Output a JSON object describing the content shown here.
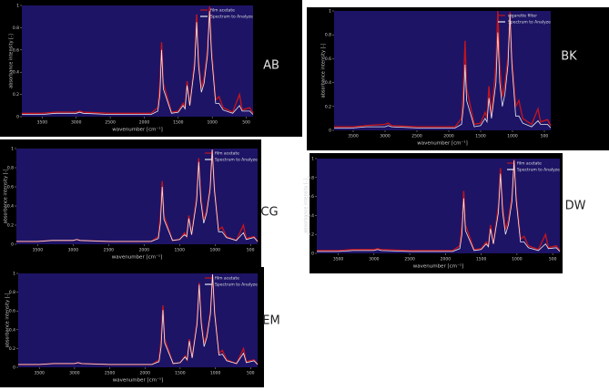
{
  "chart_data": [
    {
      "type": "line",
      "title": "AB",
      "x_label": "wavenumber [cm⁻¹]",
      "y_label": "absorbance intensity [-]",
      "x": [
        3800,
        3500,
        3300,
        3000,
        2950,
        2900,
        2500,
        2100,
        1900,
        1800,
        1770,
        1745,
        1720,
        1600,
        1500,
        1430,
        1400,
        1370,
        1330,
        1260,
        1230,
        1200,
        1160,
        1120,
        1070,
        1040,
        1010,
        950,
        900,
        840,
        700,
        600,
        560,
        450,
        400
      ],
      "series": [
        {
          "name": "film acetate",
          "color": "#c0141e",
          "values": [
            0.03,
            0.03,
            0.04,
            0.04,
            0.05,
            0.04,
            0.03,
            0.03,
            0.03,
            0.08,
            0.3,
            0.67,
            0.3,
            0.04,
            0.05,
            0.12,
            0.08,
            0.32,
            0.1,
            0.5,
            0.92,
            0.5,
            0.25,
            0.35,
            0.6,
            0.99,
            0.6,
            0.15,
            0.18,
            0.08,
            0.04,
            0.2,
            0.06,
            0.08,
            0.03
          ]
        },
        {
          "name": "Spectrum to Analyze",
          "color": "#e8e8f0",
          "values": [
            0.02,
            0.02,
            0.03,
            0.03,
            0.04,
            0.03,
            0.02,
            0.02,
            0.02,
            0.05,
            0.2,
            0.6,
            0.25,
            0.03,
            0.04,
            0.1,
            0.07,
            0.28,
            0.1,
            0.45,
            0.85,
            0.45,
            0.22,
            0.3,
            0.55,
            0.95,
            0.55,
            0.12,
            0.12,
            0.06,
            0.03,
            0.1,
            0.05,
            0.05,
            0.02
          ]
        }
      ],
      "xlim": [
        3800,
        400
      ],
      "ylim": [
        0,
        1
      ],
      "xticks": [
        3500,
        3000,
        2500,
        2000,
        1500,
        1000,
        500
      ],
      "yticks": [
        0,
        0.2,
        0.4,
        0.6,
        0.8,
        1
      ]
    },
    {
      "type": "line",
      "title": "BK",
      "x_label": "wavenumber [cm⁻¹]",
      "y_label": "absorbance intensity [-]",
      "x": [
        3800,
        3500,
        3300,
        3000,
        2950,
        2900,
        2500,
        2100,
        1900,
        1800,
        1770,
        1745,
        1720,
        1600,
        1500,
        1430,
        1400,
        1370,
        1330,
        1260,
        1230,
        1200,
        1160,
        1120,
        1070,
        1040,
        1010,
        950,
        900,
        840,
        700,
        600,
        560,
        450,
        400
      ],
      "series": [
        {
          "name": "cigarette filter",
          "color": "#c0141e",
          "values": [
            0.03,
            0.03,
            0.04,
            0.05,
            0.06,
            0.04,
            0.03,
            0.03,
            0.03,
            0.1,
            0.35,
            0.75,
            0.35,
            0.05,
            0.06,
            0.15,
            0.1,
            0.37,
            0.12,
            0.55,
            1.0,
            0.55,
            0.28,
            0.38,
            0.62,
            0.99,
            0.6,
            0.2,
            0.25,
            0.1,
            0.05,
            0.18,
            0.07,
            0.09,
            0.04
          ]
        },
        {
          "name": "Spectrum to Analyze",
          "color": "#e8e8f0",
          "values": [
            0.02,
            0.02,
            0.03,
            0.03,
            0.04,
            0.03,
            0.02,
            0.02,
            0.02,
            0.05,
            0.2,
            0.55,
            0.25,
            0.03,
            0.04,
            0.1,
            0.07,
            0.27,
            0.1,
            0.4,
            0.82,
            0.4,
            0.2,
            0.3,
            0.55,
            0.97,
            0.55,
            0.12,
            0.12,
            0.06,
            0.03,
            0.08,
            0.05,
            0.05,
            0.02
          ]
        }
      ],
      "xlim": [
        3800,
        400
      ],
      "ylim": [
        0,
        1
      ],
      "xticks": [
        3500,
        3000,
        2500,
        2000,
        1500,
        1000,
        500
      ],
      "yticks": [
        0,
        0.2,
        0.4,
        0.6,
        0.8,
        1
      ]
    },
    {
      "type": "line",
      "title": "CG",
      "x_label": "wavenumber [cm⁻¹]",
      "y_label": "absorbance intensity [-]",
      "x": [
        3800,
        3500,
        3300,
        3000,
        2950,
        2900,
        2500,
        2100,
        1900,
        1800,
        1770,
        1745,
        1720,
        1600,
        1500,
        1430,
        1400,
        1370,
        1330,
        1260,
        1230,
        1200,
        1160,
        1120,
        1070,
        1040,
        1010,
        950,
        900,
        840,
        700,
        600,
        560,
        450,
        400
      ],
      "series": [
        {
          "name": "film acetate",
          "color": "#c0141e",
          "values": [
            0.03,
            0.03,
            0.04,
            0.04,
            0.05,
            0.04,
            0.03,
            0.03,
            0.03,
            0.08,
            0.3,
            0.66,
            0.3,
            0.04,
            0.05,
            0.12,
            0.08,
            0.3,
            0.1,
            0.5,
            0.9,
            0.5,
            0.25,
            0.35,
            0.6,
            0.99,
            0.6,
            0.15,
            0.18,
            0.08,
            0.04,
            0.2,
            0.06,
            0.08,
            0.03
          ]
        },
        {
          "name": "Spectrum to Analyze",
          "color": "#e8e8f0",
          "values": [
            0.03,
            0.03,
            0.04,
            0.04,
            0.05,
            0.04,
            0.03,
            0.03,
            0.03,
            0.06,
            0.22,
            0.6,
            0.26,
            0.04,
            0.05,
            0.1,
            0.08,
            0.27,
            0.1,
            0.45,
            0.86,
            0.45,
            0.22,
            0.32,
            0.57,
            0.99,
            0.57,
            0.13,
            0.13,
            0.07,
            0.04,
            0.12,
            0.05,
            0.07,
            0.03
          ]
        }
      ],
      "xlim": [
        3800,
        400
      ],
      "ylim": [
        0,
        1
      ],
      "xticks": [
        3500,
        3000,
        2500,
        2000,
        1500,
        1000,
        500
      ],
      "yticks": [
        0,
        0.2,
        0.4,
        0.6,
        0.8,
        1
      ]
    },
    {
      "type": "line",
      "title": "DW",
      "x_label": "wavenumber [cm⁻¹]",
      "y_label": "absorbance intensity [-]",
      "x": [
        3800,
        3500,
        3300,
        3000,
        2950,
        2900,
        2500,
        2100,
        1900,
        1800,
        1770,
        1745,
        1720,
        1600,
        1500,
        1430,
        1400,
        1370,
        1330,
        1260,
        1230,
        1200,
        1160,
        1120,
        1070,
        1040,
        1010,
        950,
        900,
        840,
        700,
        600,
        560,
        450,
        400
      ],
      "series": [
        {
          "name": "film acetate",
          "color": "#c0141e",
          "values": [
            0.03,
            0.03,
            0.04,
            0.04,
            0.05,
            0.04,
            0.03,
            0.03,
            0.03,
            0.08,
            0.3,
            0.66,
            0.3,
            0.04,
            0.05,
            0.12,
            0.08,
            0.3,
            0.1,
            0.5,
            0.9,
            0.5,
            0.25,
            0.35,
            0.6,
            0.99,
            0.6,
            0.15,
            0.18,
            0.08,
            0.04,
            0.2,
            0.06,
            0.08,
            0.03
          ]
        },
        {
          "name": "Spectrum to Analyze",
          "color": "#e8e8f0",
          "values": [
            0.02,
            0.02,
            0.03,
            0.03,
            0.04,
            0.03,
            0.02,
            0.02,
            0.02,
            0.05,
            0.2,
            0.58,
            0.24,
            0.03,
            0.04,
            0.1,
            0.07,
            0.26,
            0.1,
            0.43,
            0.84,
            0.43,
            0.2,
            0.3,
            0.55,
            0.98,
            0.55,
            0.12,
            0.12,
            0.06,
            0.03,
            0.1,
            0.05,
            0.06,
            0.02
          ]
        }
      ],
      "xlim": [
        3800,
        400
      ],
      "ylim": [
        0,
        1
      ],
      "xticks": [
        3500,
        3000,
        2500,
        2000,
        1500,
        1000,
        500
      ],
      "yticks": [
        0,
        0.2,
        0.4,
        0.6,
        0.8,
        1
      ]
    },
    {
      "type": "line",
      "title": "EM",
      "x_label": "wavenumber [cm⁻¹]",
      "y_label": "absorbance intensity [-]",
      "x": [
        3800,
        3500,
        3300,
        3000,
        2950,
        2900,
        2500,
        2100,
        1900,
        1800,
        1770,
        1745,
        1720,
        1600,
        1500,
        1430,
        1400,
        1370,
        1330,
        1260,
        1230,
        1200,
        1160,
        1120,
        1070,
        1040,
        1010,
        950,
        900,
        840,
        700,
        600,
        560,
        450,
        400
      ],
      "series": [
        {
          "name": "film acetate",
          "color": "#c0141e",
          "values": [
            0.03,
            0.03,
            0.04,
            0.04,
            0.05,
            0.04,
            0.03,
            0.03,
            0.03,
            0.08,
            0.3,
            0.66,
            0.3,
            0.04,
            0.05,
            0.12,
            0.08,
            0.3,
            0.1,
            0.5,
            0.9,
            0.5,
            0.25,
            0.35,
            0.6,
            0.99,
            0.6,
            0.15,
            0.18,
            0.08,
            0.04,
            0.2,
            0.06,
            0.08,
            0.03
          ]
        },
        {
          "name": "Spectrum to Analyze",
          "color": "#e8e8f0",
          "values": [
            0.03,
            0.03,
            0.04,
            0.04,
            0.05,
            0.04,
            0.03,
            0.03,
            0.03,
            0.06,
            0.22,
            0.61,
            0.26,
            0.04,
            0.05,
            0.11,
            0.08,
            0.28,
            0.1,
            0.46,
            0.88,
            0.46,
            0.22,
            0.32,
            0.57,
            0.99,
            0.57,
            0.13,
            0.14,
            0.07,
            0.04,
            0.15,
            0.05,
            0.07,
            0.03
          ]
        }
      ],
      "xlim": [
        3800,
        400
      ],
      "ylim": [
        0,
        1
      ],
      "xticks": [
        3500,
        3000,
        2500,
        2000,
        1500,
        1000,
        500
      ],
      "yticks": [
        0,
        0.2,
        0.4,
        0.6,
        0.8,
        1
      ]
    }
  ]
}
